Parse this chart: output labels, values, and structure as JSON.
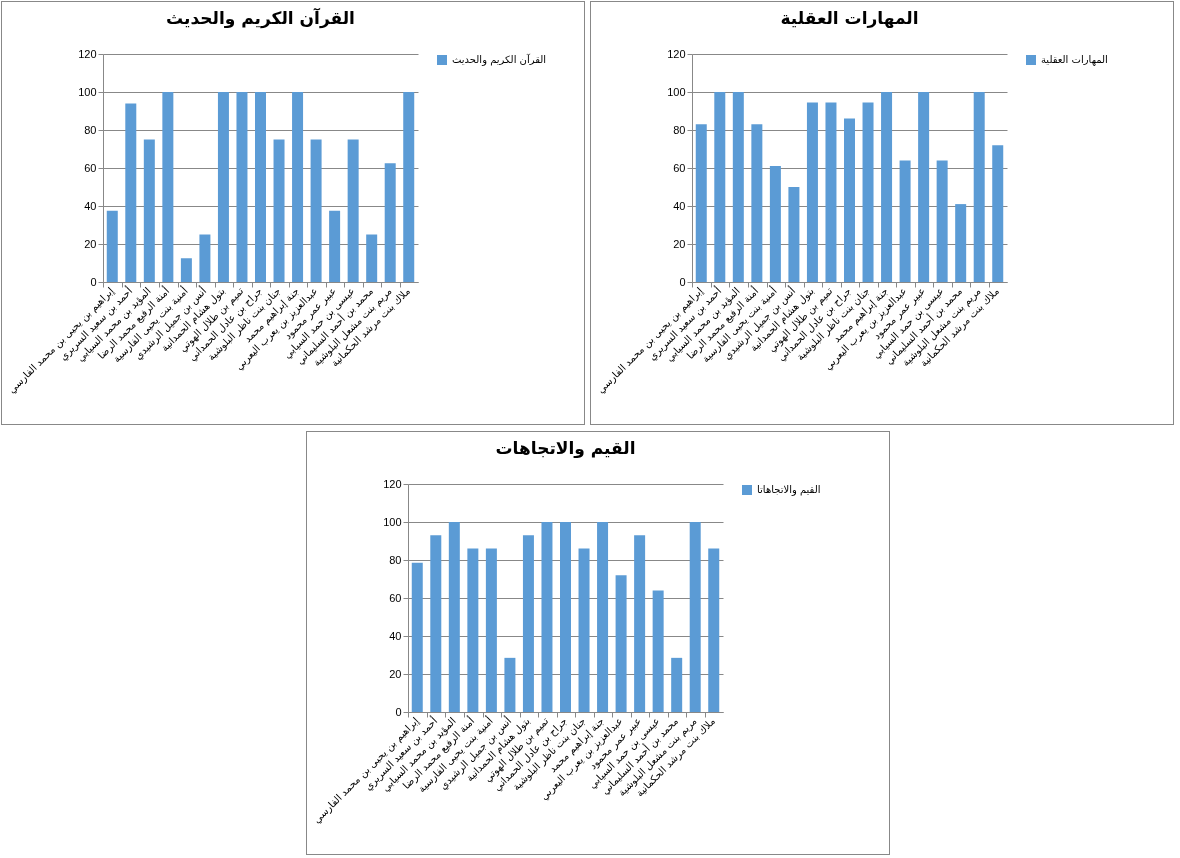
{
  "chart_data": [
    {
      "type": "bar",
      "title": "القرآن الكريم والحديث",
      "categories": [
        "إبراهيم بن يحيى بن محمد الفارسي",
        "أحمد بن سعيد السريري",
        "المؤيد بن محمد السيابي",
        "أمنة الرفيع محمد الرضا",
        "أمنية بنت يحيى الفارسية",
        "أنس بن جميل الرشيدي",
        "بتول هشام الحمدانية",
        "تميم بن طلال الهوتي",
        "جراح بن عادل الحمداني",
        "جنان بنت ناظر البلوشية",
        "جنة إبراهيم محمد",
        "عبدالعزيز بن يعرب اليعربي",
        "عبير عمر محمود",
        "عيسى بن حمد السيابي",
        "محمد بن أحمد السليماني",
        "مريم بنت مشعل البلوشية",
        "ملاك بنت مرشد الحكمانية"
      ],
      "series": [
        {
          "name": "القرآن الكريم والحديث",
          "color": "#5b9bd5",
          "values": [
            37.5,
            94,
            75,
            100,
            12.5,
            25,
            100,
            100,
            100,
            75,
            100,
            75,
            37.5,
            75,
            25,
            62.5,
            100
          ]
        }
      ],
      "ylim": [
        0,
        120
      ],
      "yticks": [
        0,
        20,
        40,
        60,
        80,
        100,
        120
      ],
      "grid": "y",
      "legend": "right"
    },
    {
      "type": "bar",
      "title": "المهارات العقلية",
      "categories": [
        "إبراهيم بن يحيى بن محمد الفارسي",
        "أحمد بن سعيد السريري",
        "المؤيد بن محمد السيابي",
        "أمنة الرفيع محمد الرضا",
        "أمنية بنت يحيى الفارسية",
        "أنس بن جميل الرشيدي",
        "بتول هشام الحمدانية",
        "تميم بن طلال الهوتي",
        "جراح بن عادل الحمداني",
        "جنان بنت ناظر البلوشية",
        "جنة إبراهيم محمد",
        "عبدالعزيز بن يعرب اليعربي",
        "عبير عمر محمود",
        "عيسى بن حمد السيابي",
        "محمد بن أحمد السليماني",
        "مريم بنت مشعل البلوشية",
        "ملاك بنت مرشد الحكمانية"
      ],
      "series": [
        {
          "name": "المهارات العقلية",
          "color": "#5b9bd5",
          "values": [
            83,
            100,
            100,
            83,
            61,
            50,
            94.5,
            94.5,
            86,
            94.5,
            100,
            64,
            100,
            64,
            41,
            100,
            72
          ]
        }
      ],
      "ylim": [
        0,
        120
      ],
      "yticks": [
        0,
        20,
        40,
        60,
        80,
        100,
        120
      ],
      "grid": "y",
      "legend": "right"
    },
    {
      "type": "bar",
      "title": "القيم والاتجاهات",
      "categories": [
        "إبراهيم بن يحيى بن محمد الفارسي",
        "أحمد بن سعيد السريري",
        "المؤيد بن محمد السيابي",
        "أمنة الرفيع محمد الرضا",
        "أمنية بنت يحيى الفارسية",
        "أنس بن جميل الرشيدي",
        "بتول هشام الحمدانية",
        "تميم بن طلال الهوتي",
        "جراح بن عادل الحمداني",
        "جنان بنت ناظر البلوشية",
        "جنة إبراهيم محمد",
        "عبدالعزيز بن يعرب اليعربي",
        "عبير عمر محمود",
        "عيسى بن حمد السيابي",
        "محمد بن أحمد السليماني",
        "مريم بنت مشعل البلوشية",
        "ملاك بنت مرشد الحكمانية"
      ],
      "series": [
        {
          "name": "القيم والاتجاهاتا",
          "color": "#5b9bd5",
          "values": [
            78.5,
            93,
            100,
            86,
            86,
            28.5,
            93,
            100,
            100,
            86,
            100,
            72,
            93,
            64,
            28.5,
            100,
            86
          ]
        }
      ],
      "ylim": [
        0,
        120
      ],
      "yticks": [
        0,
        20,
        40,
        60,
        80,
        100,
        120
      ],
      "grid": "y",
      "legend": "right"
    }
  ]
}
